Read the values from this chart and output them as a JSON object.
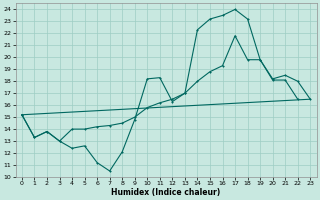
{
  "xlabel": "Humidex (Indice chaleur)",
  "bg_color": "#c8e8e0",
  "grid_color": "#9ecec4",
  "line_color": "#006860",
  "xlim": [
    -0.5,
    23.5
  ],
  "ylim": [
    10,
    24.5
  ],
  "yticks": [
    10,
    11,
    12,
    13,
    14,
    15,
    16,
    17,
    18,
    19,
    20,
    21,
    22,
    23,
    24
  ],
  "xticks": [
    0,
    1,
    2,
    3,
    4,
    5,
    6,
    7,
    8,
    9,
    10,
    11,
    12,
    13,
    14,
    15,
    16,
    17,
    18,
    19,
    20,
    21,
    22,
    23
  ],
  "line1_x": [
    0,
    1,
    2,
    3,
    4,
    5,
    6,
    7,
    8,
    9,
    10,
    11,
    12,
    13,
    14,
    15,
    16,
    17,
    18,
    19,
    20,
    21,
    22
  ],
  "line1_y": [
    15.2,
    13.3,
    13.8,
    13.0,
    12.4,
    12.6,
    11.2,
    10.5,
    12.1,
    14.8,
    18.2,
    18.3,
    16.3,
    17.0,
    22.3,
    23.2,
    23.5,
    24.0,
    23.2,
    19.8,
    18.1,
    18.1,
    16.5
  ],
  "line2_x": [
    0,
    1,
    2,
    3,
    4,
    5,
    6,
    7,
    8,
    9,
    10,
    11,
    12,
    13,
    14,
    15,
    16,
    17,
    18,
    19,
    20,
    21,
    22,
    23
  ],
  "line2_y": [
    15.2,
    13.3,
    13.8,
    13.0,
    14.0,
    14.0,
    14.2,
    14.3,
    14.5,
    15.0,
    15.8,
    16.2,
    16.5,
    17.0,
    18.0,
    18.8,
    19.3,
    21.8,
    19.8,
    19.8,
    18.2,
    18.5,
    18.0,
    16.5
  ],
  "line3_x": [
    0,
    23
  ],
  "line3_y": [
    15.2,
    16.5
  ]
}
